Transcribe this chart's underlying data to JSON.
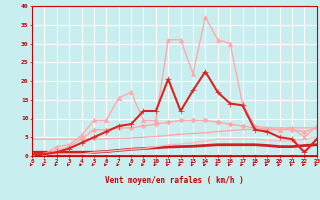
{
  "xlabel": "Vent moyen/en rafales ( km/h )",
  "background_color": "#c8eef0",
  "grid_color": "#ffffff",
  "x_ticks": [
    0,
    1,
    2,
    3,
    4,
    5,
    6,
    7,
    8,
    9,
    10,
    11,
    12,
    13,
    14,
    15,
    16,
    17,
    18,
    19,
    20,
    21,
    22,
    23
  ],
  "ylim": [
    0,
    40
  ],
  "xlim": [
    0,
    23
  ],
  "yticks": [
    0,
    5,
    10,
    15,
    20,
    25,
    30,
    35,
    40
  ],
  "lines": [
    {
      "y": [
        0,
        0,
        0,
        0,
        0,
        0,
        0,
        0,
        0,
        0,
        0,
        0,
        0,
        0,
        0,
        0,
        0,
        0,
        0,
        0,
        0,
        0,
        0,
        0
      ],
      "color": "#cc0000",
      "marker": "D",
      "lw": 1.2,
      "ms": 1.5
    },
    {
      "y": [
        1,
        1,
        1,
        1,
        1,
        1,
        1.2,
        1.5,
        1.8,
        2.0,
        2.2,
        2.4,
        2.5,
        2.6,
        2.8,
        3.0,
        3.0,
        3.0,
        3.0,
        2.8,
        2.5,
        2.5,
        2.8,
        3.0
      ],
      "color": "#cc2222",
      "marker": null,
      "lw": 2.0
    },
    {
      "y": [
        4.5,
        4.5,
        4.5,
        4.5,
        4.5,
        4.5,
        4.6,
        4.7,
        4.8,
        5.0,
        5.2,
        5.5,
        5.8,
        6.0,
        6.2,
        6.5,
        6.8,
        7.0,
        7.2,
        7.5,
        7.5,
        7.5,
        7.5,
        7.5
      ],
      "color": "#ffaaaa",
      "marker": null,
      "lw": 1.0
    },
    {
      "y": [
        0.5,
        0.5,
        1.5,
        2.5,
        4.5,
        7.0,
        7.0,
        7.5,
        7.5,
        8.0,
        8.5,
        9.0,
        9.5,
        9.5,
        9.5,
        9.0,
        8.5,
        8.0,
        7.5,
        7.0,
        7.0,
        7.0,
        6.5,
        7.5
      ],
      "color": "#ffaaaa",
      "marker": "D",
      "lw": 1.0,
      "ms": 2.5
    },
    {
      "y": [
        0.5,
        0.5,
        0.5,
        0.5,
        0.5,
        1.0,
        1.2,
        1.5,
        1.8,
        2.0,
        2.5,
        3.0,
        3.2,
        3.5,
        4.0,
        4.5,
        4.5,
        4.5,
        4.5,
        4.2,
        4.0,
        4.0,
        4.5,
        5.0
      ],
      "color": "#ffbbbb",
      "marker": null,
      "lw": 1.0
    },
    {
      "y": [
        0.5,
        0.5,
        2.5,
        3.0,
        5.5,
        9.5,
        9.5,
        15.5,
        17.0,
        9.5,
        9.5,
        31.0,
        31.0,
        22.0,
        37.0,
        31.0,
        30.0,
        14.0,
        8.0,
        7.5,
        7.0,
        7.5,
        5.0,
        8.0
      ],
      "color": "#ffaaaa",
      "marker": "^",
      "lw": 1.0,
      "ms": 3
    },
    {
      "y": [
        0.5,
        0.5,
        1.0,
        2.0,
        3.5,
        5.0,
        6.5,
        8.0,
        8.5,
        12.0,
        12.0,
        20.5,
        12.0,
        17.5,
        22.5,
        17.0,
        14.0,
        13.5,
        7.0,
        6.5,
        5.0,
        4.5,
        1.0,
        4.5
      ],
      "color": "#dd2222",
      "marker": "+",
      "lw": 1.5,
      "ms": 5
    }
  ],
  "arrow_directions": [
    225,
    225,
    225,
    225,
    225,
    225,
    225,
    225,
    225,
    225,
    225,
    225,
    225,
    225,
    225,
    225,
    225,
    225,
    225,
    225,
    225,
    225,
    225,
    225
  ]
}
